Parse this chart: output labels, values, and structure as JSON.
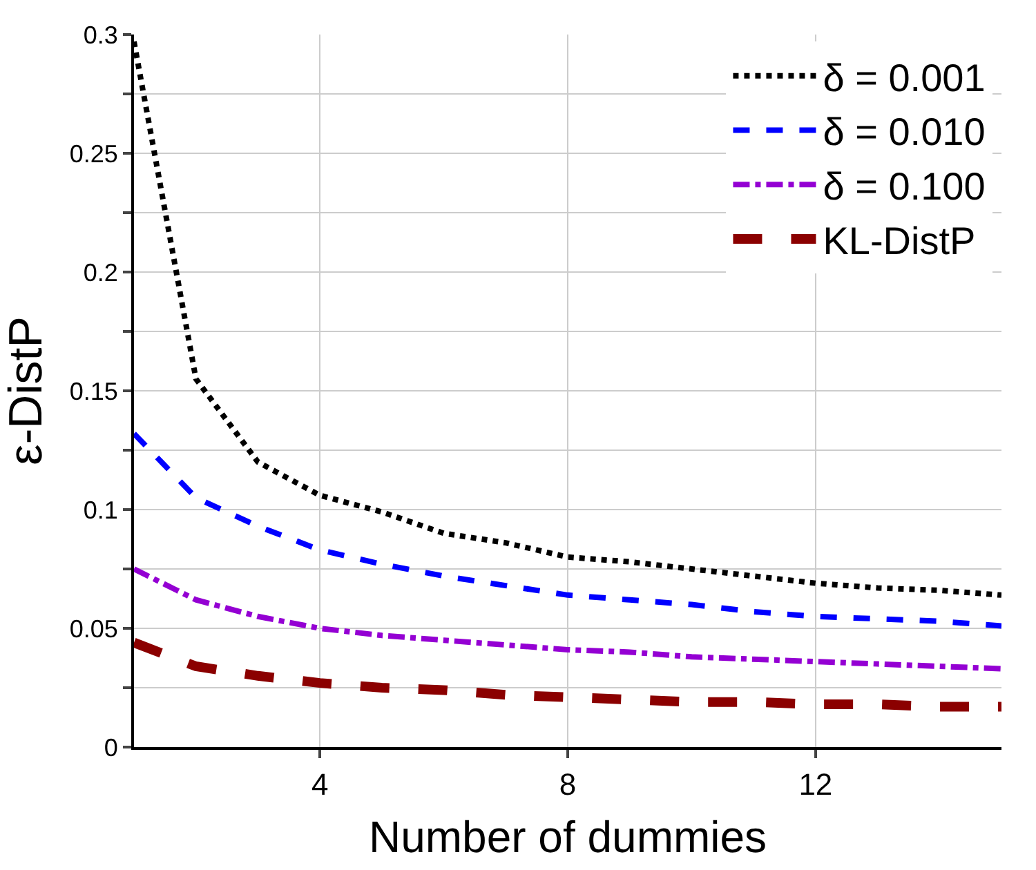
{
  "chart_data": {
    "type": "line",
    "xlabel": "Number of dummies",
    "ylabel": "ε-DistP",
    "x": [
      1,
      2,
      3,
      4,
      5,
      6,
      7,
      8,
      9,
      10,
      11,
      12,
      13,
      14,
      15
    ],
    "xlim": [
      1,
      15
    ],
    "xticks": [
      4,
      8,
      12
    ],
    "ylim": [
      0,
      0.3
    ],
    "yticks": [
      0,
      {
        "value": 0.025,
        "label": null
      },
      0.05,
      {
        "value": 0.075,
        "label": null
      },
      0.1,
      {
        "value": 0.125,
        "label": null
      },
      0.15,
      {
        "value": 0.175,
        "label": null
      },
      0.2,
      {
        "value": 0.225,
        "label": null
      },
      0.25,
      {
        "value": 0.275,
        "label": null
      },
      0.3
    ],
    "grid": true,
    "legend": "top right",
    "marker": "none",
    "series": [
      {
        "name": "δ = 0.001",
        "color": "#000000",
        "line_style": "dotted",
        "values": [
          0.297,
          0.155,
          0.12,
          0.106,
          0.099,
          0.09,
          0.086,
          0.08,
          0.078,
          0.075,
          0.072,
          0.069,
          0.067,
          0.066,
          0.064
        ]
      },
      {
        "name": "δ = 0.010",
        "color": "#0000ff",
        "line_style": "dashed",
        "values": [
          0.132,
          0.105,
          0.093,
          0.083,
          0.077,
          0.072,
          0.068,
          0.064,
          0.062,
          0.06,
          0.057,
          0.055,
          0.054,
          0.053,
          0.051
        ]
      },
      {
        "name": "δ = 0.100",
        "color": "#9400d3",
        "line_style": "dashdot",
        "values": [
          0.075,
          0.062,
          0.055,
          0.05,
          0.047,
          0.045,
          0.043,
          0.041,
          0.04,
          0.038,
          0.037,
          0.036,
          0.035,
          0.034,
          0.033
        ]
      },
      {
        "name": "KL-DistP",
        "color": "#8b0000",
        "line_style": "longdash",
        "values": [
          0.044,
          0.034,
          0.03,
          0.027,
          0.025,
          0.024,
          0.022,
          0.021,
          0.02,
          0.019,
          0.019,
          0.018,
          0.018,
          0.017,
          0.017
        ]
      }
    ]
  }
}
